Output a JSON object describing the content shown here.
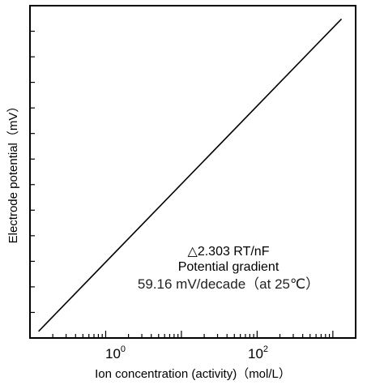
{
  "chart_data": {
    "type": "line",
    "title": "",
    "xlabel": "Ion concentration (activity)（mol/L）",
    "ylabel": "Electrode potential（mV）",
    "x_scale": "log",
    "xlim": [
      0.1,
      2000
    ],
    "x_tick_labels": [
      {
        "value": 1,
        "base": "10",
        "exp": "0"
      },
      {
        "value": 100,
        "base": "10",
        "exp": "2"
      }
    ],
    "y_ticks_labeled": false,
    "grid": false,
    "series": [
      {
        "x": [
          0.13,
          1300
        ],
        "y": [
          0.02,
          0.96
        ]
      }
    ],
    "annotation": [
      "△2.303 RT/nF",
      "Potential gradient",
      "59.16 mV/decade（at 25℃）"
    ]
  }
}
